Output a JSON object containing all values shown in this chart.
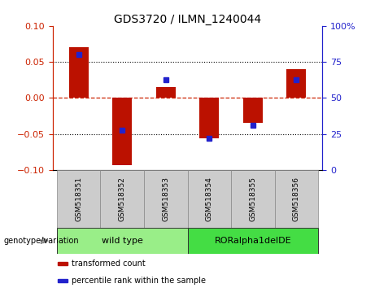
{
  "title": "GDS3720 / ILMN_1240044",
  "samples": [
    "GSM518351",
    "GSM518352",
    "GSM518353",
    "GSM518354",
    "GSM518355",
    "GSM518356"
  ],
  "red_bars": [
    0.07,
    -0.093,
    0.015,
    -0.056,
    -0.035,
    0.04
  ],
  "blue_markers_left": [
    0.06,
    -0.045,
    0.025,
    -0.056,
    -0.038,
    0.025
  ],
  "ylim_left": [
    -0.1,
    0.1
  ],
  "ylim_right": [
    0,
    100
  ],
  "yticks_left": [
    -0.1,
    -0.05,
    0,
    0.05,
    0.1
  ],
  "yticks_right": [
    0,
    25,
    50,
    75,
    100
  ],
  "ytick_labels_right": [
    "0",
    "25",
    "50",
    "75",
    "100%"
  ],
  "hlines_dotted": [
    0.05,
    -0.05
  ],
  "hline_dashed": 0.0,
  "bar_color": "#bb1100",
  "marker_color": "#2222cc",
  "genotype_groups": [
    {
      "label": "wild type",
      "start": 0,
      "end": 2,
      "color": "#99ee88"
    },
    {
      "label": "RORalpha1delDE",
      "start": 3,
      "end": 5,
      "color": "#44dd44"
    }
  ],
  "legend_items": [
    {
      "label": "transformed count",
      "color": "#bb1100"
    },
    {
      "label": "percentile rank within the sample",
      "color": "#2222cc"
    }
  ],
  "genotype_label": "genotype/variation",
  "left_color": "#cc2200",
  "right_color": "#2222cc",
  "sample_box_color": "#cccccc",
  "sample_box_edge": "#888888",
  "bar_width": 0.45
}
